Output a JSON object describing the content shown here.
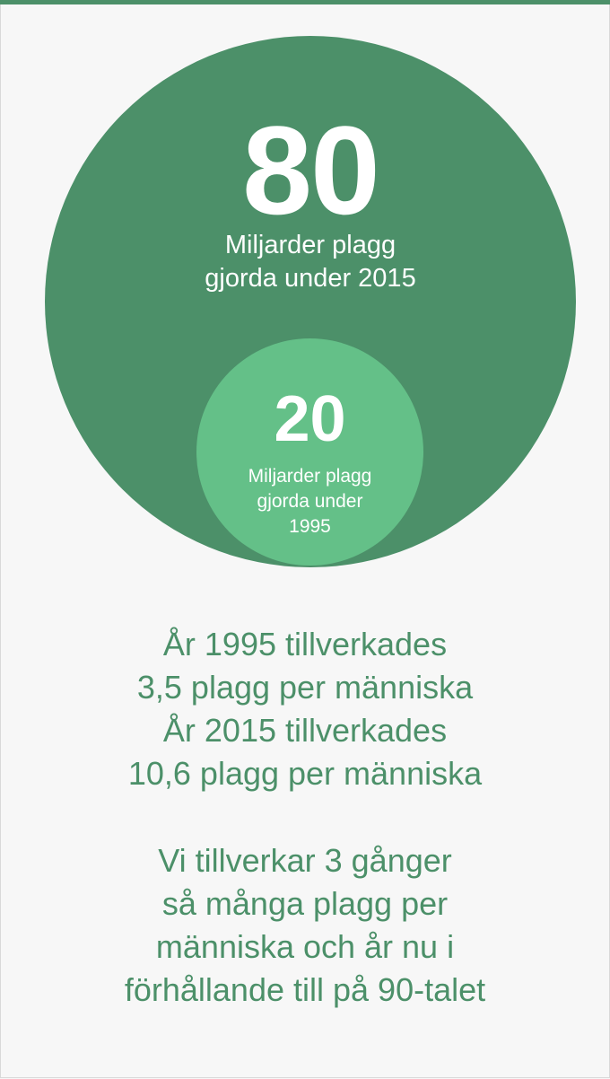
{
  "colors": {
    "dark_green": "#4c9069",
    "light_green": "#64c088",
    "background": "#f7f7f7",
    "text_on_circle": "#ffffff"
  },
  "big_circle": {
    "number": "80",
    "label_lines": [
      "Miljarder plagg",
      "gjorda under 2015"
    ]
  },
  "small_circle": {
    "number": "20",
    "label_lines": [
      "Miljarder plagg",
      "gjorda under",
      "1995"
    ]
  },
  "facts": [
    "År 1995 tillverkades",
    "3,5 plagg per människa",
    "År 2015 tillverkades",
    "10,6 plagg per människa"
  ],
  "summary": [
    "Vi tillverkar 3 gånger",
    "så många plagg per",
    "människa och år nu i",
    "förhållande till på 90-talet"
  ]
}
